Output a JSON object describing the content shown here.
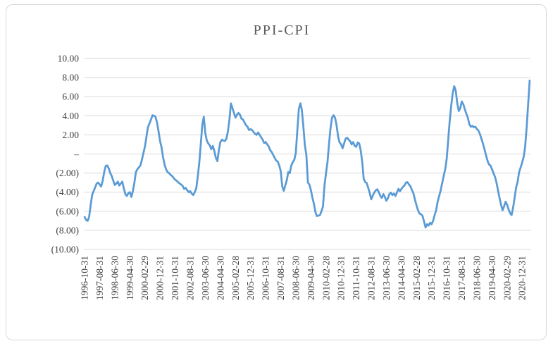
{
  "title": "PPI-CPI",
  "colors": {
    "line": "#5B9BD5",
    "grid": "#D9D9D9",
    "border": "#D9D9D9",
    "title_text": "#595959",
    "tick_text": "#404040",
    "background": "#FFFFFF"
  },
  "y_axis": {
    "labels": [
      "10.00",
      "8.00",
      "6.00",
      "4.00",
      "2.00",
      "–",
      "(2.00)",
      "(4.00)",
      "(6.00)",
      "(8.00)",
      "(10.00)"
    ],
    "values": [
      10,
      8,
      6,
      4,
      2,
      0,
      -2,
      -4,
      -6,
      -8,
      -10
    ],
    "number_format": "accounting (negatives in parentheses, zero as dash)"
  },
  "x_axis": {
    "tick_every": 10,
    "tick_labels": [
      "1996-10-31",
      "1997-08-31",
      "1998-06-30",
      "1999-04-30",
      "2000-02-29",
      "2000-12-31",
      "2001-10-31",
      "2002-08-31",
      "2003-06-30",
      "2004-04-30",
      "2005-02-28",
      "2005-12-31",
      "2006-10-31",
      "2007-08-31",
      "2008-06-30",
      "2009-04-30",
      "2010-02-28",
      "2010-12-31",
      "2011-10-31",
      "2012-08-31",
      "2013-06-30",
      "2014-04-30",
      "2015-02-28",
      "2015-12-31",
      "2016-10-31",
      "2017-08-31",
      "2018-06-30",
      "2019-04-30",
      "2020-02-29",
      "2020-12-31"
    ]
  },
  "chart_data": {
    "type": "line",
    "title": "PPI-CPI",
    "xlabel": "",
    "ylabel": "",
    "ylim": [
      -10,
      10
    ],
    "grid": "horizontal",
    "legend": "none",
    "frequency": "monthly",
    "series": [
      {
        "name": "PPI-CPI",
        "start": "1996-10",
        "end": "2021-05",
        "values_by_year": {
          "1996": [
            -6.6,
            -6.9,
            -7.0
          ],
          "1997": [
            -6.6,
            -5.4,
            -4.3,
            -3.9,
            -3.5,
            -3.1,
            -3.0,
            -3.2,
            -3.4,
            -2.8,
            -1.9,
            -1.25
          ],
          "1998": [
            -1.2,
            -1.5,
            -2.0,
            -2.3,
            -2.8,
            -3.25,
            -3.1,
            -2.9,
            -3.3,
            -3.1,
            -2.9,
            -3.6
          ],
          "1999": [
            -4.2,
            -4.4,
            -4.1,
            -4.0,
            -4.5,
            -3.9,
            -3.0,
            -1.9,
            -1.6,
            -1.4,
            -1.2,
            -0.6
          ],
          "2000": [
            0.1,
            0.75,
            1.8,
            2.8,
            3.2,
            3.6,
            4.05,
            4.0,
            3.9,
            3.3,
            2.4,
            1.35
          ],
          "2001": [
            0.7,
            -0.3,
            -1.1,
            -1.6,
            -1.9,
            -2.0,
            -2.2,
            -2.3,
            -2.5,
            -2.7,
            -2.8,
            -2.95
          ],
          "2002": [
            -3.1,
            -3.2,
            -3.35,
            -3.65,
            -3.55,
            -3.8,
            -4.0,
            -3.9,
            -4.15,
            -4.3,
            -4.0,
            -3.6
          ],
          "2003": [
            -2.4,
            -0.9,
            1.0,
            3.0,
            3.9,
            2.2,
            1.4,
            1.1,
            0.9,
            0.5,
            0.85,
            0.3
          ],
          "2004": [
            -0.4,
            -0.75,
            0.4,
            1.25,
            1.5,
            1.4,
            1.35,
            1.6,
            2.4,
            3.6,
            5.3,
            4.8
          ],
          "2005": [
            4.3,
            3.8,
            4.1,
            4.3,
            4.1,
            3.7,
            3.6,
            3.3,
            3.0,
            2.85,
            2.5,
            2.6
          ],
          "2006": [
            2.5,
            2.3,
            2.1,
            2.0,
            2.25,
            2.0,
            1.75,
            1.5,
            1.15,
            1.25,
            1.0,
            0.8
          ],
          "2007": [
            0.4,
            0.2,
            -0.1,
            -0.4,
            -0.7,
            -0.8,
            -1.2,
            -1.8,
            -3.4,
            -3.85,
            -3.3,
            -2.75
          ],
          "2008": [
            -1.9,
            -2.0,
            -1.2,
            -0.85,
            -0.6,
            0.1,
            2.5,
            4.7,
            5.3,
            4.6,
            2.9,
            0.9
          ],
          "2009": [
            -0.1,
            -3.0,
            -3.2,
            -3.8,
            -4.6,
            -5.2,
            -6.1,
            -6.5,
            -6.45,
            -6.4,
            -6.0,
            -5.5
          ],
          "2010": [
            -3.3,
            -2.0,
            -0.85,
            1.1,
            2.7,
            3.8,
            4.05,
            3.8,
            3.0,
            1.85,
            1.2,
            1.0
          ],
          "2011": [
            0.6,
            1.1,
            1.6,
            1.7,
            1.5,
            1.35,
            1.0,
            1.25,
            0.85,
            0.75,
            1.2,
            1.1
          ],
          "2012": [
            0.4,
            -0.85,
            -2.6,
            -2.95,
            -3.05,
            -3.55,
            -4.1,
            -4.75,
            -4.35,
            -4.05,
            -3.8,
            -3.7
          ],
          "2013": [
            -4.0,
            -4.4,
            -4.6,
            -4.2,
            -4.5,
            -4.9,
            -4.65,
            -4.2,
            -4.05,
            -4.3,
            -4.15,
            -4.4
          ],
          "2014": [
            -4.05,
            -3.65,
            -3.9,
            -3.65,
            -3.45,
            -3.3,
            -3.0,
            -2.95,
            -3.2,
            -3.4,
            -3.8,
            -4.15
          ],
          "2015": [
            -4.8,
            -5.4,
            -5.9,
            -6.25,
            -6.3,
            -6.5,
            -7.1,
            -7.7,
            -7.35,
            -7.5,
            -7.2,
            -7.35
          ],
          "2016": [
            -7.0,
            -6.4,
            -5.9,
            -5.0,
            -4.4,
            -3.8,
            -3.05,
            -2.3,
            -1.6,
            -0.5,
            1.5,
            3.5
          ],
          "2017": [
            5.1,
            6.4,
            7.1,
            6.6,
            5.3,
            4.5,
            4.8,
            5.5,
            5.2,
            4.7,
            4.2,
            3.8
          ],
          "2018": [
            3.1,
            2.85,
            2.95,
            2.8,
            2.85,
            2.6,
            2.45,
            2.1,
            1.6,
            1.1,
            0.5,
            -0.1
          ],
          "2019": [
            -0.7,
            -1.1,
            -1.2,
            -1.6,
            -2.0,
            -2.4,
            -3.0,
            -3.8,
            -4.6,
            -5.3,
            -5.9,
            -5.5
          ],
          "2020": [
            -5.0,
            -5.3,
            -5.8,
            -6.2,
            -6.4,
            -5.6,
            -4.6,
            -3.5,
            -2.9,
            -1.9,
            -1.4,
            -0.9
          ],
          "2021": [
            -0.3,
            0.8,
            2.8,
            5.3,
            7.7
          ]
        }
      }
    ]
  }
}
